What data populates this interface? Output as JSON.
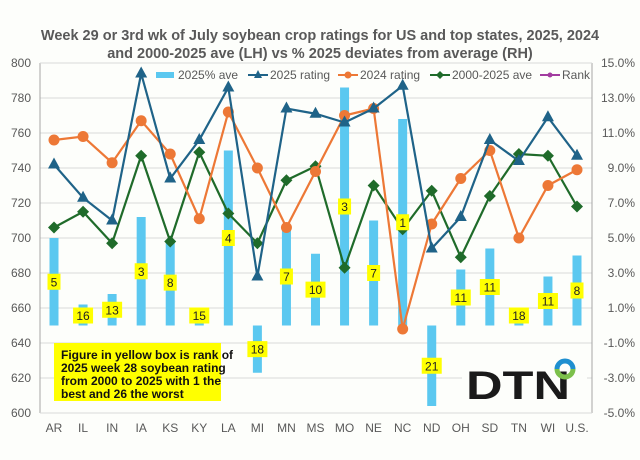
{
  "chart_data": {
    "type": "bar+line",
    "title": "Week 29 or 3rd wk of July soybean crop ratings for US and top states, 2025, 2024 and 2000-2025 ave (LH) vs % 2025 deviates from average (RH)",
    "title_lines": [
      "Week 29 or 3rd wk of July soybean crop ratings for US and top states, 2025, 2024",
      "and 2000-2025 ave (LH) vs % 2025 deviates from average (RH)"
    ],
    "categories": [
      "AR",
      "IL",
      "IN",
      "IA",
      "KS",
      "KY",
      "LA",
      "MI",
      "MN",
      "MS",
      "MO",
      "NE",
      "NC",
      "ND",
      "OH",
      "SD",
      "TN",
      "WI",
      "U.S."
    ],
    "left_axis": {
      "range": [
        600,
        800
      ],
      "ticks": [
        "600",
        "620",
        "640",
        "660",
        "680",
        "700",
        "720",
        "740",
        "760",
        "780",
        "800"
      ],
      "tick_values": [
        600,
        620,
        640,
        660,
        680,
        700,
        720,
        740,
        760,
        780,
        800
      ]
    },
    "right_axis": {
      "range": [
        -5,
        15
      ],
      "ticks": [
        "-5.0%",
        "-3.0%",
        "-1.0%",
        "1.0%",
        "3.0%",
        "5.0%",
        "7.0%",
        "9.0%",
        "11.0%",
        "13.0%",
        "15.0%"
      ],
      "tick_values": [
        -5,
        -3,
        -1,
        1,
        3,
        5,
        7,
        9,
        11,
        13,
        15
      ]
    },
    "grid": true,
    "legend_position": "top",
    "series": [
      {
        "name": "2025% ave",
        "type": "bar",
        "axis": "right",
        "color": "#5bc8f0",
        "values": [
          5.0,
          1.2,
          1.8,
          6.2,
          4.9,
          0.4,
          10.0,
          -2.7,
          5.6,
          4.1,
          13.6,
          6.0,
          11.8,
          -4.6,
          3.2,
          4.4,
          0.4,
          2.8,
          4.0
        ]
      },
      {
        "name": "2025 rating",
        "type": "line",
        "marker": "triangle",
        "axis": "left",
        "color": "#1f6388",
        "values": [
          742,
          723,
          710,
          794,
          734,
          756,
          786,
          678,
          774,
          771,
          766,
          774,
          787,
          694,
          712,
          756,
          744,
          769,
          747
        ]
      },
      {
        "name": "2024 rating",
        "type": "line",
        "marker": "circle",
        "axis": "left",
        "color": "#ed7836",
        "values": [
          756,
          758,
          743,
          767,
          748,
          711,
          772,
          740,
          706,
          738,
          770,
          774,
          648,
          708,
          734,
          750,
          700,
          730,
          739
        ]
      },
      {
        "name": "2000-2025 ave",
        "type": "line",
        "marker": "diamond",
        "axis": "left",
        "color": "#1f6b2a",
        "values": [
          706,
          715,
          697,
          747,
          698,
          749,
          714,
          697,
          733,
          741,
          683,
          730,
          705,
          727,
          689,
          724,
          748,
          747,
          718
        ]
      },
      {
        "name": "Rank",
        "type": "label",
        "color": "#a23ca0",
        "values": [
          5,
          16,
          13,
          3,
          8,
          15,
          4,
          18,
          7,
          10,
          3,
          7,
          1,
          21,
          11,
          11,
          18,
          11,
          8
        ]
      }
    ],
    "annotation": [
      "Figure in yellow box is rank of",
      "2025 week 28 soybean rating",
      "from 2000 to 2025 with 1 the",
      "best and 26 the worst"
    ],
    "rank_box_color": "#ffff00"
  },
  "logo": {
    "text": "DTN",
    "name": "DTN"
  }
}
